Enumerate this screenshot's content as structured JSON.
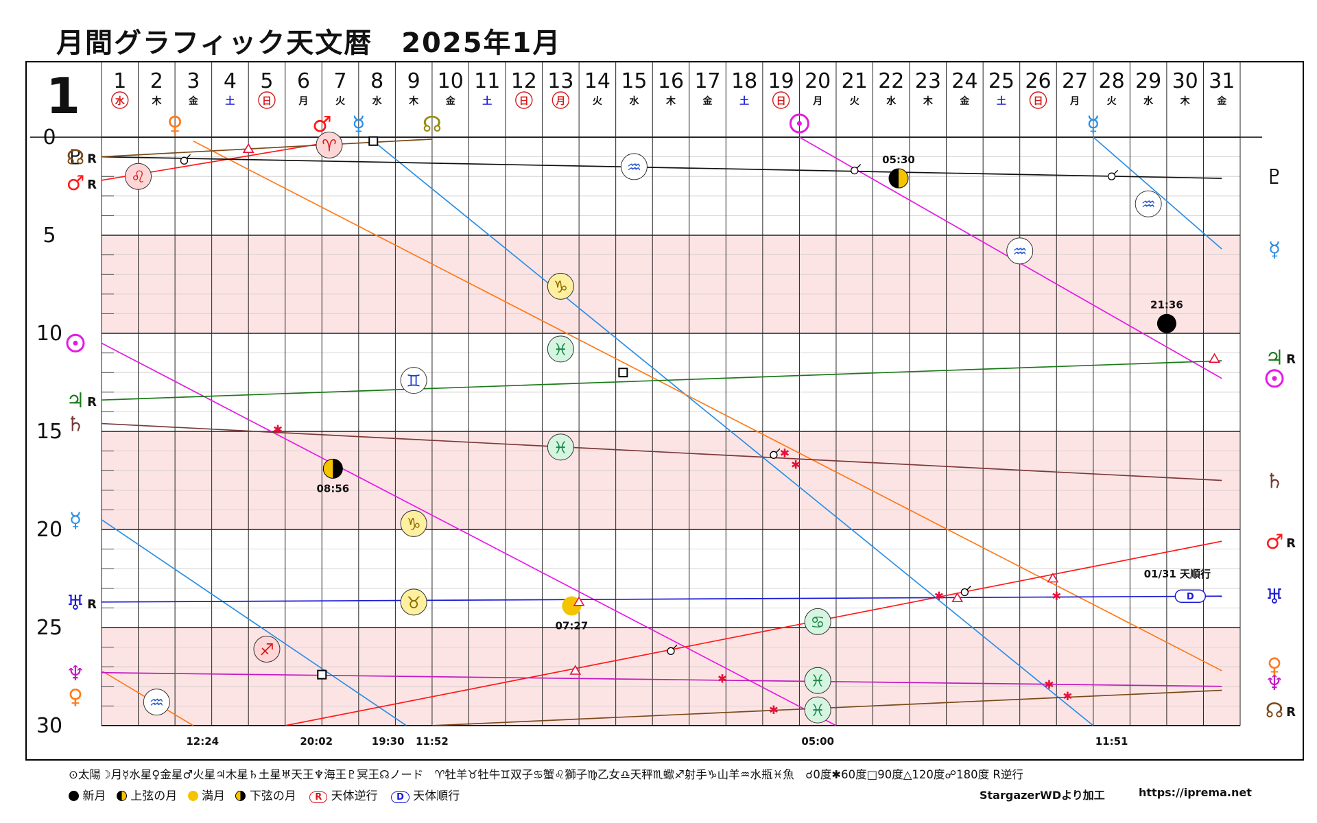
{
  "title": "月間グラフィック天文暦　2025年1月",
  "month_label": "1",
  "chart_data": {
    "type": "line",
    "title": "月間グラフィック天文暦　2025年1月",
    "xlim": [
      1,
      32
    ],
    "ylim": [
      0,
      30
    ],
    "yticks": [
      "0",
      "5",
      "10",
      "15",
      "20",
      "25",
      "30"
    ],
    "grid": true,
    "days": [
      "1",
      "2",
      "3",
      "4",
      "5",
      "6",
      "7",
      "8",
      "9",
      "10",
      "11",
      "12",
      "13",
      "14",
      "15",
      "16",
      "17",
      "18",
      "19",
      "20",
      "21",
      "22",
      "23",
      "24",
      "25",
      "26",
      "27",
      "28",
      "29",
      "30",
      "31"
    ],
    "weekdays": [
      "水",
      "木",
      "金",
      "土",
      "日",
      "月",
      "火",
      "水",
      "木",
      "金",
      "土",
      "日",
      "月",
      "火",
      "水",
      "木",
      "金",
      "土",
      "日",
      "月",
      "火",
      "水",
      "木",
      "金",
      "土",
      "日",
      "月",
      "火",
      "水",
      "木",
      "金"
    ],
    "weekday_styles": [
      "circle-red",
      "",
      "",
      "blue",
      "circle-red",
      "",
      "",
      "",
      "",
      "",
      "blue",
      "circle-red",
      "circle-red",
      "",
      "",
      "",
      "",
      "blue",
      "circle-red",
      "",
      "",
      "",
      "",
      "",
      "blue",
      "circle-red",
      "",
      "",
      "",
      "",
      ""
    ],
    "top_planet_markers": [
      {
        "symbol": "♀",
        "x": 3,
        "color": "#ff7a1a"
      },
      {
        "symbol": "♂",
        "x": 7,
        "color": "#ff1a1a"
      },
      {
        "symbol": "☿",
        "x": 8,
        "color": "#2a8fe6"
      },
      {
        "symbol": "☊",
        "x": 10,
        "color": "#9a8a10"
      },
      {
        "symbol": "⊙",
        "x": 20,
        "color": "#e61ae6"
      },
      {
        "symbol": "☿",
        "x": 28,
        "color": "#2a8fe6"
      }
    ],
    "series": [
      {
        "name": "太陽",
        "symbol": "⊙",
        "color": "#e61ae6",
        "segments": [
          [
            [
              20,
              0
            ],
            [
              31.5,
              12.3
            ]
          ],
          [
            [
              1,
              10.5
            ],
            [
              21,
              30
            ]
          ]
        ],
        "left_label": "⊙",
        "right_label": "⊙",
        "left_y": 10.5,
        "right_y": 12.3
      },
      {
        "name": "水星",
        "symbol": "☿",
        "color": "#2a8fe6",
        "segments": [
          [
            [
              8.4,
              0.2
            ],
            [
              28,
              30
            ]
          ],
          [
            [
              28,
              0
            ],
            [
              31.5,
              5.7
            ]
          ],
          [
            [
              1,
              19.5
            ],
            [
              9.3,
              30
            ]
          ]
        ],
        "left_label": "☿",
        "right_label": "☿",
        "left_y": 19.5,
        "right_y": 5.7
      },
      {
        "name": "金星",
        "symbol": "♀",
        "color": "#ff7a1a",
        "segments": [
          [
            [
              3.5,
              0.2
            ],
            [
              31.5,
              27.2
            ]
          ],
          [
            [
              1,
              27.2
            ],
            [
              3.5,
              30
            ]
          ]
        ],
        "left_label": "♀",
        "right_label": "♀",
        "left_y": 28.5,
        "right_y": 26.9
      },
      {
        "name": "火星",
        "symbol": "♂",
        "color": "#ff1a1a",
        "segments": [
          [
            [
              1,
              2.2
            ],
            [
              7.4,
              0.2
            ]
          ],
          [
            [
              6,
              30
            ],
            [
              31.5,
              20.6
            ]
          ]
        ],
        "left_label": "♂",
        "right_label": "♂",
        "left_y": 2.3,
        "right_y": 20.6,
        "left_suffix": "R",
        "right_suffix": "R"
      },
      {
        "name": "木星",
        "symbol": "♃",
        "color": "#1a7a1a",
        "segments": [
          [
            [
              1,
              13.4
            ],
            [
              31.5,
              11.4
            ]
          ]
        ],
        "left_label": "♃",
        "right_label": "♃",
        "left_y": 13.4,
        "right_y": 11.2,
        "left_suffix": "R",
        "right_suffix": "R"
      },
      {
        "name": "土星",
        "symbol": "♄",
        "color": "#7a3a3a",
        "segments": [
          [
            [
              1,
              14.6
            ],
            [
              31.5,
              17.5
            ]
          ]
        ],
        "left_label": "♄",
        "right_label": "♄",
        "left_y": 14.6,
        "right_y": 17.5
      },
      {
        "name": "天王星",
        "symbol": "♅",
        "color": "#1a1ad6",
        "segments": [
          [
            [
              1,
              23.7
            ],
            [
              31.5,
              23.4
            ]
          ]
        ],
        "left_label": "♅",
        "right_label": "♅",
        "left_y": 23.7,
        "right_y": 23.4,
        "left_suffix": "R"
      },
      {
        "name": "海王星",
        "symbol": "♆",
        "color": "#c21ac2",
        "segments": [
          [
            [
              1,
              27.3
            ],
            [
              31.5,
              28
            ]
          ]
        ],
        "left_label": "♆",
        "right_label": "♆",
        "left_y": 27.3,
        "right_y": 27.8
      },
      {
        "name": "冥王星",
        "symbol": "♇",
        "color": "#111111",
        "segments": [
          [
            [
              1,
              1
            ],
            [
              31.5,
              2.1
            ]
          ]
        ],
        "left_label": "♇",
        "right_label": "♇",
        "left_y": 1.0,
        "right_y": 2.0
      },
      {
        "name": "ノード",
        "symbol": "☊",
        "color": "#7a4a1a",
        "segments": [
          [
            [
              1,
              1.0
            ],
            [
              10,
              0.1
            ]
          ],
          [
            [
              10,
              30
            ],
            [
              31.5,
              28.2
            ]
          ]
        ],
        "left_label": "☊",
        "right_label": "☊",
        "left_y": 1.0,
        "right_y": 29.2,
        "left_suffix": "R",
        "right_suffix": "R"
      }
    ],
    "sign_markers": [
      {
        "symbol": "♌",
        "x": 2,
        "y": 2.0,
        "fill": "#ffd6d6",
        "color": "#d61a1a"
      },
      {
        "symbol": "♈",
        "x": 7.2,
        "y": 0.4,
        "fill": "#ffd6d6",
        "color": "#d61a1a"
      },
      {
        "symbol": "♒",
        "x": 15.5,
        "y": 1.5,
        "fill": "#ffffff",
        "color": "#2a5ad6"
      },
      {
        "symbol": "♒",
        "x": 29.5,
        "y": 3.4,
        "fill": "#ffffff",
        "color": "#2a5ad6"
      },
      {
        "symbol": "♒",
        "x": 26,
        "y": 5.8,
        "fill": "#ffffff",
        "color": "#2a5ad6"
      },
      {
        "symbol": "♑",
        "x": 13.5,
        "y": 7.6,
        "fill": "#fff0a0",
        "color": "#8a6a00"
      },
      {
        "symbol": "♓",
        "x": 13.5,
        "y": 10.8,
        "fill": "#d6f5e0",
        "color": "#1a8a4a"
      },
      {
        "symbol": "♊",
        "x": 9.5,
        "y": 12.4,
        "fill": "#ffffff",
        "color": "#1a3ad6"
      },
      {
        "symbol": "♓",
        "x": 13.5,
        "y": 15.8,
        "fill": "#d6f5e0",
        "color": "#1a8a4a"
      },
      {
        "symbol": "♑",
        "x": 9.5,
        "y": 19.7,
        "fill": "#fff0a0",
        "color": "#8a6a00"
      },
      {
        "symbol": "♉",
        "x": 9.5,
        "y": 23.7,
        "fill": "#fff0a0",
        "color": "#8a6a00"
      },
      {
        "symbol": "♋",
        "x": 20.5,
        "y": 24.7,
        "fill": "#d6f5e0",
        "color": "#1a8a4a"
      },
      {
        "symbol": "♐",
        "x": 5.5,
        "y": 26.1,
        "fill": "#ffd6d6",
        "color": "#d61a1a"
      },
      {
        "symbol": "♓",
        "x": 20.5,
        "y": 27.7,
        "fill": "#d6f5e0",
        "color": "#1a8a4a"
      },
      {
        "symbol": "♓",
        "x": 20.5,
        "y": 29.2,
        "fill": "#d6f5e0",
        "color": "#1a8a4a"
      },
      {
        "symbol": "♒",
        "x": 2.5,
        "y": 28.8,
        "fill": "#ffffff",
        "color": "#2a5ad6"
      }
    ],
    "moon_phases": [
      {
        "phase": "上弦の月",
        "x": 22.7,
        "y": 2.1,
        "label": "05:30",
        "label_pos": "above"
      },
      {
        "phase": "新月",
        "x": 30,
        "y": 9.5,
        "label": "21:36",
        "label_pos": "above"
      },
      {
        "phase": "下弦の月",
        "x": 7.3,
        "y": 16.9,
        "label": "08:56",
        "label_pos": "below"
      },
      {
        "phase": "満月",
        "x": 13.8,
        "y": 23.9,
        "label": "07:27",
        "label_pos": "below"
      }
    ],
    "aspect_marks": [
      {
        "type": "conjunction",
        "x": 3.25,
        "y": 1.2
      },
      {
        "type": "conjunction",
        "x": 21.5,
        "y": 1.7
      },
      {
        "type": "conjunction",
        "x": 28.5,
        "y": 2.0
      },
      {
        "type": "conjunction",
        "x": 19.3,
        "y": 16.2
      },
      {
        "type": "conjunction",
        "x": 16.5,
        "y": 26.2
      },
      {
        "type": "conjunction",
        "x": 24.5,
        "y": 23.2
      },
      {
        "type": "square",
        "x": 8.4,
        "y": 0.2
      },
      {
        "type": "square",
        "x": 15.2,
        "y": 12.0
      },
      {
        "type": "square",
        "x": 7.0,
        "y": 27.4
      },
      {
        "type": "sextile",
        "x": 5.8,
        "y": 14.9
      },
      {
        "type": "sextile",
        "x": 19.6,
        "y": 16.1
      },
      {
        "type": "sextile",
        "x": 19.9,
        "y": 16.7
      },
      {
        "type": "sextile",
        "x": 23.8,
        "y": 23.4
      },
      {
        "type": "sextile",
        "x": 27,
        "y": 23.4
      },
      {
        "type": "sextile",
        "x": 17.9,
        "y": 27.6
      },
      {
        "type": "sextile",
        "x": 26.8,
        "y": 27.9
      },
      {
        "type": "sextile",
        "x": 27.3,
        "y": 28.5
      },
      {
        "type": "sextile",
        "x": 19.3,
        "y": 29.2
      },
      {
        "type": "trine",
        "x": 5.0,
        "y": 0.6
      },
      {
        "type": "trine",
        "x": 14,
        "y": 23.7
      },
      {
        "type": "trine",
        "x": 24.3,
        "y": 23.5
      },
      {
        "type": "trine",
        "x": 26.9,
        "y": 22.5
      },
      {
        "type": "trine",
        "x": 13.9,
        "y": 27.2
      },
      {
        "type": "trine",
        "x": 31.3,
        "y": 11.3
      }
    ],
    "bottom_times": [
      {
        "x": 3.75,
        "label": "12:24"
      },
      {
        "x": 6.85,
        "label": "20:02"
      },
      {
        "x": 8.8,
        "label": "19:30"
      },
      {
        "x": 10,
        "label": "11:52"
      },
      {
        "x": 20.5,
        "label": "05:00"
      },
      {
        "x": 28.5,
        "label": "11:51"
      }
    ],
    "station": {
      "x": 30.4,
      "y": 23.4,
      "badge": "D",
      "label": "01/31 天順行"
    }
  },
  "legend": {
    "row1": "⊙太陽☽月☿水星♀金星♂火星♃木星♄土星♅天王♆海王♇冥王☊ノード　♈牡羊♉牡牛♊双子♋蟹♌獅子♍乙女♎天秤♏蠍♐射手♑山羊♒水瓶♓魚　☌0度✱60度□90度△120度☍180度 R逆行",
    "new_moon": "新月",
    "first_quarter": "上弦の月",
    "full_moon": "満月",
    "last_quarter": "下弦の月",
    "retro_badge": "R",
    "retro_label": "天体逆行",
    "direct_badge": "D",
    "direct_label": "天体順行",
    "credit": "StargazerWDより加工",
    "url": "https://iprema.net"
  }
}
